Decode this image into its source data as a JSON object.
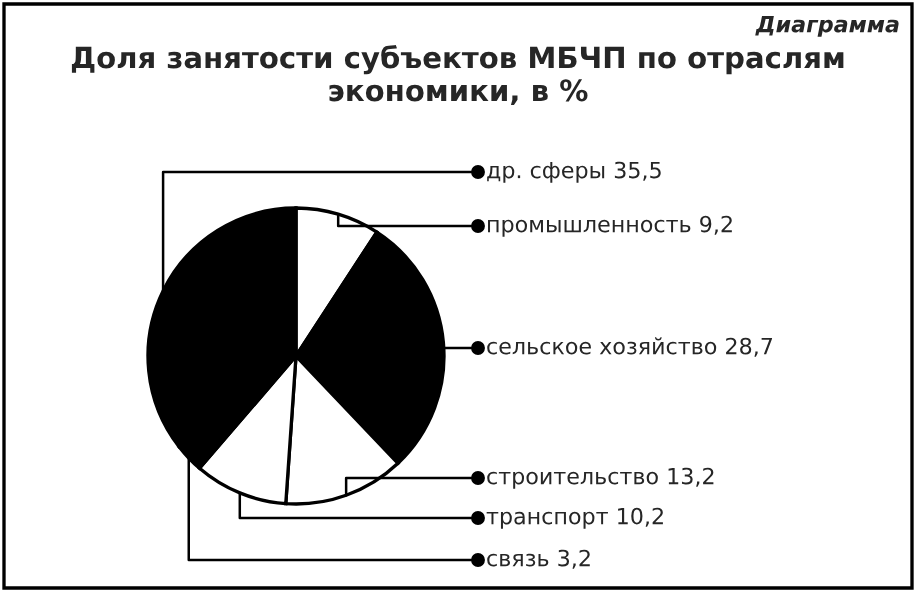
{
  "chart_data": {
    "type": "pie",
    "title": "Доля занятости субъектов МБЧП по отраслям\nэкономики, в %",
    "annotations": [
      "Диаграмма"
    ],
    "categories": [
      "промышленность",
      "сельское хозяйство",
      "строительство",
      "транспорт",
      "связь",
      "др. сферы"
    ],
    "values": [
      9.2,
      28.7,
      13.2,
      10.2,
      3.2,
      35.5
    ],
    "value_labels": [
      "9,2",
      "28,7",
      "13,2",
      "10,2",
      "3,2",
      "35,5"
    ],
    "legend": "right",
    "colors": [
      "#ffffff",
      "#000000",
      "#ffffff",
      "#ffffff",
      "#000000",
      "#000000"
    ]
  }
}
